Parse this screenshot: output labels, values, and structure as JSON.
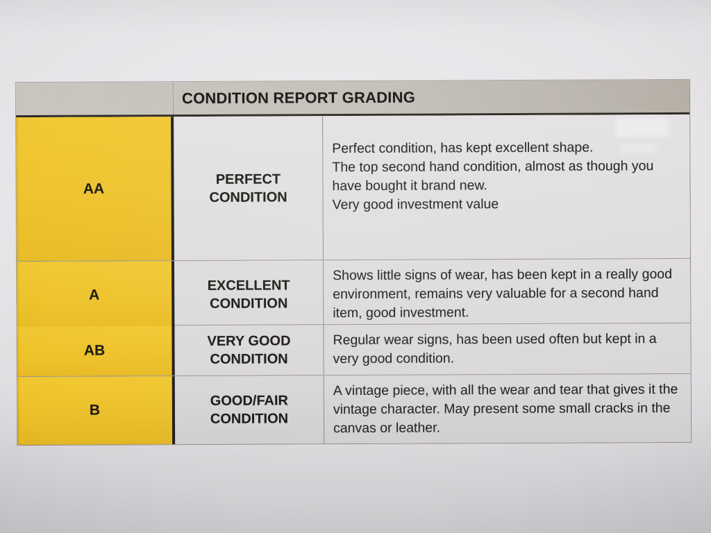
{
  "document": {
    "kind": "condition-report-grading-table"
  },
  "colors": {
    "grade_column_yellow": "#EDC128",
    "header_gray": "#C2BEB7",
    "paper_light": "#E5E3E6",
    "paper_dark": "#C3C1C4",
    "cell_background": "#DCDADC",
    "text": "#1D1B18",
    "heavy_border": "#1C1A16"
  },
  "table": {
    "title": "CONDITION REPORT GRADING",
    "rows": [
      {
        "grade": "AA",
        "name": "PERFECT\nCONDITION",
        "paragraphs": [
          "Perfect condition, has kept excellent shape.",
          "The top second hand condition, almost as though you have bought it brand new.",
          "Very good investment value"
        ]
      },
      {
        "grade": "A",
        "name": "EXCELLENT\nCONDITION",
        "paragraphs": [
          "Shows little signs of wear, has been kept in a really good environment, remains very valuable for a second hand item, good investment."
        ]
      },
      {
        "grade": "AB",
        "name": "VERY GOOD\nCONDITION",
        "paragraphs": [
          "Regular wear signs, has been used often but kept in a very good condition."
        ]
      },
      {
        "grade": "B",
        "name": "GOOD/FAIR\nCONDITION",
        "paragraphs": [
          "A vintage piece, with all the wear and tear that gives it the vintage character. May present some small cracks in the canvas or leather."
        ]
      }
    ]
  }
}
